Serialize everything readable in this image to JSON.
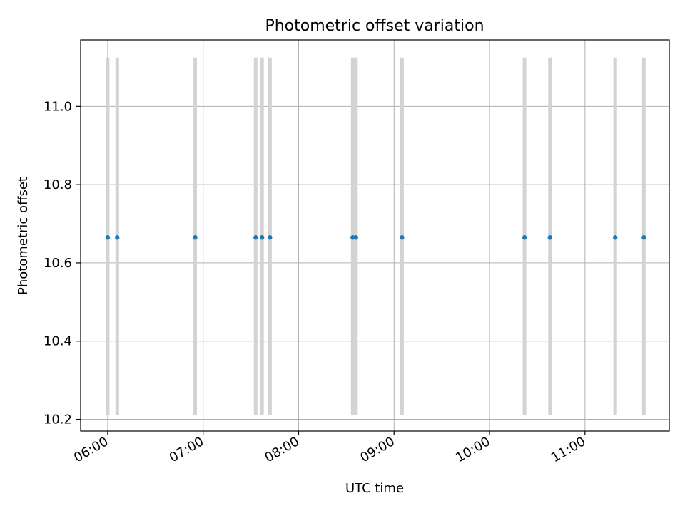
{
  "chart_data": {
    "type": "scatter",
    "title": "Photometric offset variation",
    "xlabel": "UTC time",
    "ylabel": "Photometric offset",
    "xlim": [
      "05:43",
      "11:53"
    ],
    "ylim": [
      10.17,
      11.17
    ],
    "x_ticks": [
      "06:00",
      "07:00",
      "08:00",
      "09:00",
      "10:00",
      "11:00"
    ],
    "y_ticks": [
      "10.2",
      "10.4",
      "10.6",
      "10.8",
      "11.0"
    ],
    "grid": true,
    "colors": {
      "points": "#1f77b4",
      "errorbars": "#d3d3d3",
      "grid": "#b0b0b0",
      "axes": "#000000"
    },
    "series": [
      {
        "x": [
          "06:00",
          "06:06",
          "06:55",
          "07:33",
          "07:37",
          "07:42",
          "08:34",
          "08:36",
          "09:05",
          "10:22",
          "10:38",
          "11:19",
          "11:37"
        ],
        "y": [
          10.665,
          10.665,
          10.665,
          10.665,
          10.665,
          10.665,
          10.665,
          10.665,
          10.665,
          10.665,
          10.665,
          10.665,
          10.665
        ],
        "error_low": [
          10.21,
          10.21,
          10.21,
          10.21,
          10.21,
          10.21,
          10.21,
          10.21,
          10.21,
          10.21,
          10.21,
          10.21,
          10.21
        ],
        "error_high": [
          11.125,
          11.125,
          11.125,
          11.125,
          11.125,
          11.125,
          11.125,
          11.125,
          11.125,
          11.125,
          11.125,
          11.125,
          11.125
        ]
      }
    ]
  }
}
